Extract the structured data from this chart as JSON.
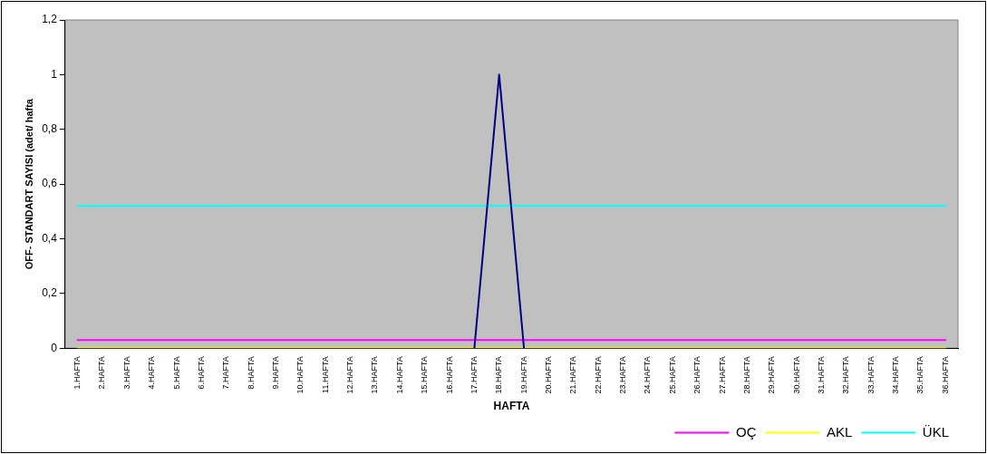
{
  "chart_data": {
    "type": "line",
    "xlabel": "HAFTA",
    "ylabel": "OFF- STANDART SAYISI (adet/ hafta",
    "categories": [
      "1.HAFTA",
      "2.HAFTA",
      "3.HAFTA",
      "4.HAFTA",
      "5.HAFTA",
      "6.HAFTA",
      "7.HAFTA",
      "8.HAFTA",
      "9.HAFTA",
      "10.HAFTA",
      "11.HAFTA",
      "12.HAFTA",
      "13.HAFTA",
      "14.HAFTA",
      "15.HAFTA",
      "16.HAFTA",
      "17.HAFTA",
      "18.HAFTA",
      "19.HAFTA",
      "20.HAFTA",
      "21.HAFTA",
      "22.HAFTA",
      "23.HAFTA",
      "24.HAFTA",
      "25.HAFTA",
      "26.HAFTA",
      "27.HAFTA",
      "28.HAFTA",
      "29.HAFTA",
      "30.HAFTA",
      "31.HAFTA",
      "32.HAFTA",
      "33.HAFTA",
      "34.HAFTA",
      "35.HAFTA",
      "36.HAFTA"
    ],
    "series": [
      {
        "color": "#000080",
        "values": [
          null,
          null,
          null,
          null,
          null,
          null,
          null,
          null,
          null,
          null,
          null,
          null,
          null,
          null,
          null,
          null,
          0,
          1,
          0,
          null,
          null,
          null,
          null,
          null,
          null,
          null,
          null,
          null,
          null,
          null,
          null,
          null,
          null,
          null,
          null,
          null
        ]
      },
      {
        "name": "OÇ",
        "color": "#ff00ff",
        "values": [
          0.03,
          0.03,
          0.03,
          0.03,
          0.03,
          0.03,
          0.03,
          0.03,
          0.03,
          0.03,
          0.03,
          0.03,
          0.03,
          0.03,
          0.03,
          0.03,
          0.03,
          0.03,
          0.03,
          0.03,
          0.03,
          0.03,
          0.03,
          0.03,
          0.03,
          0.03,
          0.03,
          0.03,
          0.03,
          0.03,
          0.03,
          0.03,
          0.03,
          0.03,
          0.03,
          0.03
        ]
      },
      {
        "name": "AKL",
        "color": "#ffff00",
        "values": [
          0,
          0,
          0,
          0,
          0,
          0,
          0,
          0,
          0,
          0,
          0,
          0,
          0,
          0,
          0,
          0,
          0,
          0,
          0,
          0,
          0,
          0,
          0,
          0,
          0,
          0,
          0,
          0,
          0,
          0,
          0,
          0,
          0,
          0,
          0,
          0
        ]
      },
      {
        "name": "ÜKL",
        "color": "#00ffff",
        "values": [
          0.52,
          0.52,
          0.52,
          0.52,
          0.52,
          0.52,
          0.52,
          0.52,
          0.52,
          0.52,
          0.52,
          0.52,
          0.52,
          0.52,
          0.52,
          0.52,
          0.52,
          0.52,
          0.52,
          0.52,
          0.52,
          0.52,
          0.52,
          0.52,
          0.52,
          0.52,
          0.52,
          0.52,
          0.52,
          0.52,
          0.52,
          0.52,
          0.52,
          0.52,
          0.52,
          0.52
        ]
      }
    ],
    "ylim": [
      0,
      1.2
    ],
    "yticks": [
      0,
      {
        "value": 0.2,
        "label": "0,2"
      },
      {
        "value": 0.4,
        "label": "0,4"
      },
      {
        "value": 0.6,
        "label": "0,6"
      },
      {
        "value": 0.8,
        "label": "0,8"
      },
      1,
      {
        "value": 1.2,
        "label": "1,2"
      }
    ],
    "grid": false,
    "legend": "bottom right",
    "marker": "none",
    "line_style": "solid"
  }
}
